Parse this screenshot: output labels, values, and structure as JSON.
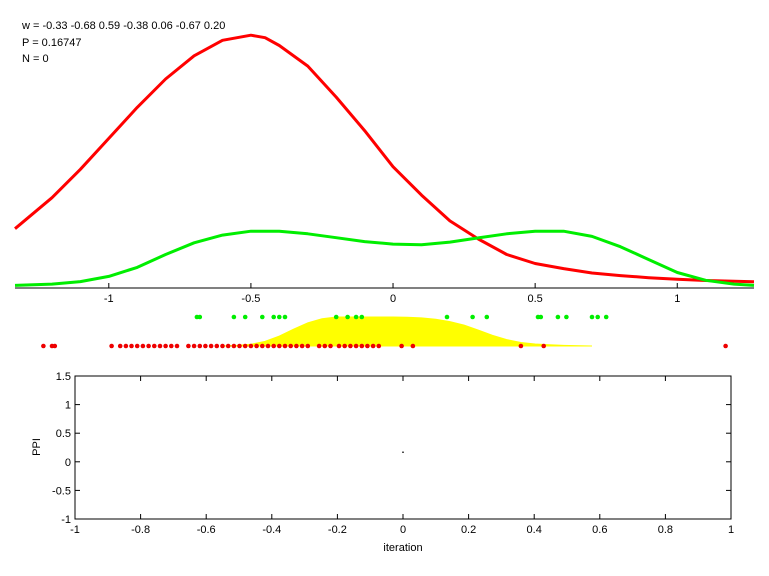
{
  "info": {
    "w_line": "w = -0.33  -0.68  0.59  -0.38  0.06  -0.67  0.20",
    "p_line": "P = 0.16747",
    "n_line": "N = 0"
  },
  "chart_data": [
    {
      "type": "line",
      "title": "",
      "xlabel": "",
      "ylabel": "",
      "xlim": [
        -1.33,
        1.27
      ],
      "ylim": [
        0,
        1
      ],
      "x_ticks": [
        -1,
        -0.5,
        0,
        0.5,
        1
      ],
      "x_tick_labels": [
        "-1",
        "-0.5",
        "0",
        "0.5",
        "1"
      ],
      "series": [
        {
          "color": "#ff0000",
          "x": [
            -1.33,
            -1.2,
            -1.1,
            -1.0,
            -0.9,
            -0.8,
            -0.7,
            -0.6,
            -0.5,
            -0.45,
            -0.4,
            -0.3,
            -0.2,
            -0.1,
            0.0,
            0.1,
            0.2,
            0.3,
            0.4,
            0.5,
            0.6,
            0.7,
            0.8,
            0.9,
            1.0,
            1.1,
            1.2,
            1.27
          ],
          "y": [
            0.23,
            0.35,
            0.46,
            0.58,
            0.7,
            0.81,
            0.9,
            0.96,
            0.98,
            0.97,
            0.94,
            0.86,
            0.74,
            0.61,
            0.47,
            0.36,
            0.26,
            0.19,
            0.13,
            0.095,
            0.075,
            0.058,
            0.048,
            0.04,
            0.034,
            0.029,
            0.026,
            0.024
          ]
        },
        {
          "color": "#00ee00",
          "x": [
            -1.33,
            -1.2,
            -1.1,
            -1.0,
            -0.9,
            -0.8,
            -0.7,
            -0.6,
            -0.5,
            -0.4,
            -0.3,
            -0.2,
            -0.1,
            0.0,
            0.1,
            0.2,
            0.3,
            0.4,
            0.5,
            0.6,
            0.7,
            0.8,
            0.9,
            1.0,
            1.1,
            1.2,
            1.27
          ],
          "y": [
            0.01,
            0.015,
            0.025,
            0.045,
            0.08,
            0.13,
            0.175,
            0.205,
            0.22,
            0.22,
            0.21,
            0.195,
            0.18,
            0.17,
            0.168,
            0.178,
            0.194,
            0.21,
            0.22,
            0.22,
            0.2,
            0.16,
            0.11,
            0.06,
            0.03,
            0.015,
            0.01
          ]
        }
      ]
    },
    {
      "type": "area",
      "title": "",
      "xlim": [
        -1.33,
        1.27
      ],
      "ylim": [
        0,
        1
      ],
      "series": [
        {
          "color": "#ffff00",
          "x": [
            -0.6,
            -0.55,
            -0.5,
            -0.45,
            -0.4,
            -0.35,
            -0.3,
            -0.25,
            -0.2,
            -0.15,
            -0.1,
            -0.05,
            0.0,
            0.05,
            0.1,
            0.15,
            0.2,
            0.25,
            0.3,
            0.35,
            0.4,
            0.45,
            0.5,
            0.55,
            0.6,
            0.7
          ],
          "y": [
            0.0,
            0.02,
            0.06,
            0.16,
            0.34,
            0.58,
            0.8,
            0.94,
            1.0,
            1.0,
            1.0,
            1.0,
            1.0,
            0.99,
            0.97,
            0.92,
            0.84,
            0.72,
            0.55,
            0.37,
            0.22,
            0.12,
            0.07,
            0.04,
            0.02,
            0.0
          ]
        }
      ]
    },
    {
      "type": "scatter",
      "title": "",
      "xlim": [
        -1.33,
        1.27
      ],
      "series": [
        {
          "color": "#00ee00",
          "x": [
            -0.69,
            -0.68,
            -0.56,
            -0.52,
            -0.46,
            -0.42,
            -0.4,
            -0.38,
            -0.2,
            -0.16,
            -0.13,
            -0.11,
            0.19,
            0.28,
            0.33,
            0.51,
            0.52,
            0.58,
            0.61,
            0.7,
            0.72,
            0.75
          ]
        },
        {
          "color": "#ee0000",
          "x": [
            -1.23,
            -1.2,
            -1.19,
            -0.99,
            -0.96,
            -0.94,
            -0.92,
            -0.9,
            -0.88,
            -0.86,
            -0.84,
            -0.82,
            -0.8,
            -0.78,
            -0.76,
            -0.72,
            -0.7,
            -0.68,
            -0.66,
            -0.64,
            -0.62,
            -0.6,
            -0.58,
            -0.56,
            -0.54,
            -0.52,
            -0.5,
            -0.48,
            -0.46,
            -0.44,
            -0.42,
            -0.4,
            -0.38,
            -0.36,
            -0.34,
            -0.32,
            -0.3,
            -0.26,
            -0.24,
            -0.22,
            -0.19,
            -0.17,
            -0.15,
            -0.13,
            -0.11,
            -0.09,
            -0.07,
            -0.05,
            0.03,
            0.07,
            0.45,
            0.53,
            1.17
          ]
        }
      ]
    },
    {
      "type": "scatter",
      "title": "",
      "xlabel": "iteration",
      "ylabel": "PPI",
      "xlim": [
        -1,
        1
      ],
      "ylim": [
        -1,
        1.5
      ],
      "x_ticks": [
        -1,
        -0.8,
        -0.6,
        -0.4,
        -0.2,
        0,
        0.2,
        0.4,
        0.6,
        0.8,
        1
      ],
      "x_tick_labels": [
        "-1",
        "-0.8",
        "-0.6",
        "-0.4",
        "-0.2",
        "0",
        "0.2",
        "0.4",
        "0.6",
        "0.8",
        "1"
      ],
      "y_ticks": [
        -1,
        -0.5,
        0,
        0.5,
        1,
        1.5
      ],
      "y_tick_labels": [
        "-1",
        "-0.5",
        "0",
        "0.5",
        "1",
        "1.5"
      ],
      "series": [
        {
          "color": "#000000",
          "x": [
            0
          ],
          "y": [
            0.16747
          ]
        }
      ]
    }
  ]
}
